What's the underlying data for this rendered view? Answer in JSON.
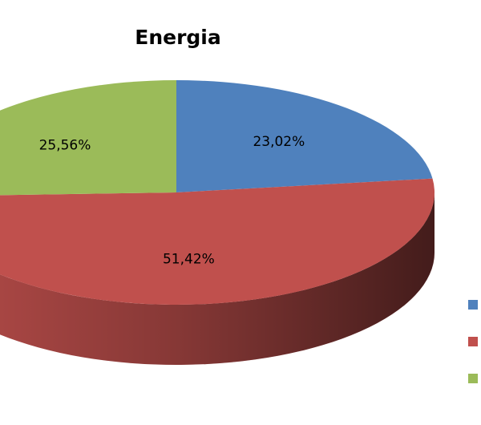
{
  "chart_data": {
    "type": "pie",
    "title": "Energia",
    "categories": [
      null,
      null,
      null
    ],
    "values": [
      23.02,
      51.42,
      25.56
    ],
    "value_labels": [
      "23,02%",
      "51,42%",
      "25,56%"
    ],
    "colors": [
      "#4f81bd",
      "#c0504d",
      "#9bbb59"
    ],
    "legend": "right"
  }
}
